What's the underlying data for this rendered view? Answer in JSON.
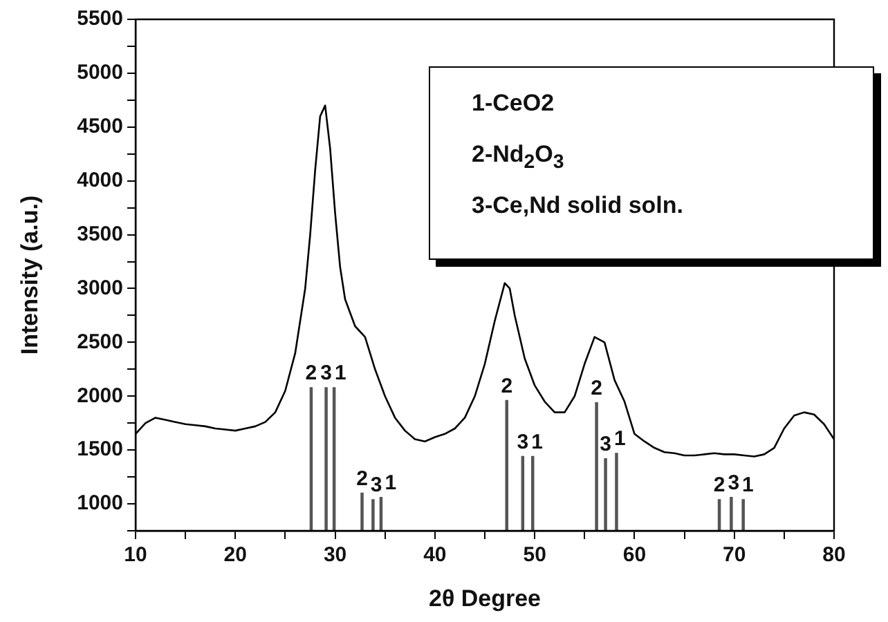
{
  "chart_data": {
    "type": "line",
    "xlabel": "2θ Degree",
    "ylabel": "Intensity (a.u.)",
    "xlim": [
      10,
      80
    ],
    "xticks": [
      10,
      {
        "value": 15,
        "label": null
      },
      20,
      {
        "value": 25,
        "label": null
      },
      30,
      {
        "value": 35,
        "label": null
      },
      40,
      {
        "value": 45,
        "label": null
      },
      50,
      {
        "value": 55,
        "label": null
      },
      60,
      {
        "value": 65,
        "label": null
      },
      70,
      {
        "value": 75,
        "label": null
      },
      80
    ],
    "ylim": [
      750,
      5500
    ],
    "yticks": [
      {
        "value": 750,
        "label": null
      },
      1000,
      {
        "value": 1250,
        "label": null
      },
      1500,
      {
        "value": 1750,
        "label": null
      },
      2000,
      {
        "value": 2250,
        "label": null
      },
      2500,
      {
        "value": 2750,
        "label": null
      },
      3000,
      {
        "value": 3250,
        "label": null
      },
      3500,
      {
        "value": 3750,
        "label": null
      },
      4000,
      {
        "value": 4250,
        "label": null
      },
      4500,
      {
        "value": 4750,
        "label": null
      },
      5000,
      {
        "value": 5250,
        "label": null
      },
      5500
    ],
    "series": [
      {
        "color": "#000000",
        "x": [
          10,
          11,
          12,
          13,
          14,
          15,
          16,
          17,
          18,
          19,
          20,
          21,
          22,
          23,
          24,
          25,
          26,
          27,
          27.5,
          28,
          28.5,
          29,
          29.5,
          30,
          30.5,
          31,
          32,
          33,
          34,
          35,
          36,
          37,
          38,
          39,
          40,
          41,
          42,
          43,
          44,
          45,
          46,
          47,
          47.5,
          48,
          49,
          50,
          51,
          52,
          53,
          54,
          55,
          56,
          57,
          58,
          59,
          60,
          61,
          62,
          63,
          64,
          65,
          66,
          67,
          68,
          69,
          70,
          71,
          72,
          73,
          74,
          75,
          76,
          77,
          78,
          79,
          80
        ],
        "values": [
          1650,
          1750,
          1800,
          1780,
          1760,
          1740,
          1730,
          1720,
          1700,
          1690,
          1680,
          1700,
          1720,
          1760,
          1850,
          2050,
          2400,
          3000,
          3500,
          4100,
          4600,
          4700,
          4300,
          3700,
          3200,
          2900,
          2650,
          2550,
          2250,
          2000,
          1800,
          1680,
          1600,
          1580,
          1620,
          1650,
          1700,
          1800,
          2000,
          2300,
          2700,
          3050,
          3000,
          2750,
          2350,
          2100,
          1950,
          1850,
          1850,
          2000,
          2300,
          2550,
          2500,
          2150,
          1950,
          1650,
          1580,
          1520,
          1480,
          1470,
          1450,
          1450,
          1460,
          1470,
          1460,
          1460,
          1450,
          1440,
          1460,
          1520,
          1700,
          1820,
          1850,
          1830,
          1740,
          1600
        ]
      },
      {
        "type": "bar",
        "color": "#555555",
        "x": [
          27.6,
          29.1,
          29.9,
          32.7,
          33.8,
          34.6,
          47.2,
          48.8,
          49.8,
          56.2,
          57.1,
          58.2,
          68.5,
          69.7,
          70.9
        ],
        "values": [
          2080,
          2080,
          2080,
          1100,
          1040,
          1060,
          1960,
          1440,
          1440,
          1940,
          1420,
          1470,
          1040,
          1060,
          1040
        ]
      }
    ],
    "annotations": [
      "1-CeO2",
      "2-Nd$_{2}$O$_{3}$",
      "3-Ce,Nd solid soln.",
      {
        "text": "2",
        "x": 27.6,
        "y": 2080
      },
      {
        "text": "3",
        "x": 29.1,
        "y": 2080
      },
      {
        "text": "1",
        "x": 29.9,
        "y": 2080
      },
      {
        "text": "2",
        "x": 32.7,
        "y": 1100
      },
      {
        "text": "3",
        "x": 33.8,
        "y": 1040
      },
      {
        "text": "1",
        "x": 34.6,
        "y": 1060
      },
      {
        "text": "2",
        "x": 47.2,
        "y": 1960
      },
      {
        "text": "3",
        "x": 48.8,
        "y": 1440
      },
      {
        "text": "1",
        "x": 49.8,
        "y": 1440
      },
      {
        "text": "2",
        "x": 56.2,
        "y": 1940
      },
      {
        "text": "3",
        "x": 57.1,
        "y": 1420
      },
      {
        "text": "1",
        "x": 58.2,
        "y": 1470
      },
      {
        "text": "2",
        "x": 68.5,
        "y": 1040
      },
      {
        "text": "3",
        "x": 69.7,
        "y": 1060
      },
      {
        "text": "1",
        "x": 70.9,
        "y": 1040
      }
    ]
  }
}
